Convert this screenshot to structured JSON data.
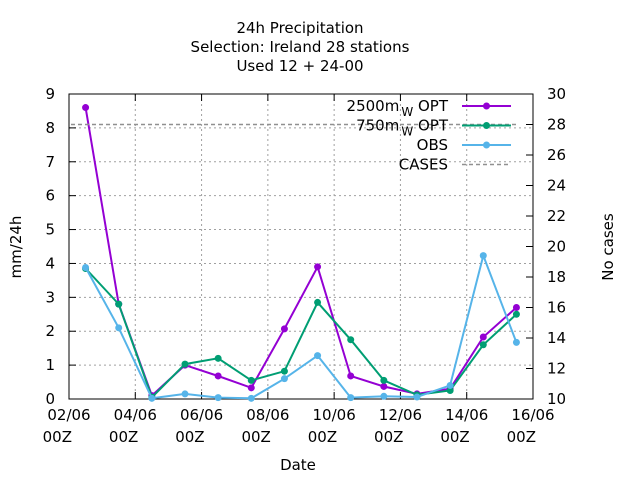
{
  "chart_data": {
    "type": "line",
    "title": [
      "24h Precipitation",
      "Selection: Ireland      28 stations",
      "Used  12 + 24-00"
    ],
    "xlabel": "Date",
    "ylabel": "mm/24h",
    "y2label": "No cases",
    "ylim": [
      0,
      9
    ],
    "y2lim": [
      10,
      30
    ],
    "xlim": [
      0,
      14
    ],
    "yticks": [
      0,
      1,
      2,
      3,
      4,
      5,
      6,
      7,
      8,
      9
    ],
    "y2ticks": [
      10,
      12,
      14,
      16,
      18,
      20,
      22,
      24,
      26,
      28,
      30
    ],
    "xticks": [
      {
        "pos": 0,
        "line1": "02/06",
        "line2": "00Z"
      },
      {
        "pos": 2,
        "line1": "04/06",
        "line2": "00Z"
      },
      {
        "pos": 4,
        "line1": "06/06",
        "line2": "00Z"
      },
      {
        "pos": 6,
        "line1": "08/06",
        "line2": "00Z"
      },
      {
        "pos": 8,
        "line1": "10/06",
        "line2": "00Z"
      },
      {
        "pos": 10,
        "line1": "12/06",
        "line2": "00Z"
      },
      {
        "pos": 12,
        "line1": "14/06",
        "line2": "00Z"
      },
      {
        "pos": 14,
        "line1": "16/06",
        "line2": "00Z"
      }
    ],
    "grid": true,
    "legend_position": "top-right",
    "x": [
      0.5,
      1.5,
      2.5,
      3.5,
      4.5,
      5.5,
      6.5,
      7.5,
      8.5,
      9.5,
      10.5,
      11.5,
      12.5,
      13.5
    ],
    "series": [
      {
        "name": "2500m",
        "name_sub": "W",
        "name_suffix": " OPT",
        "axis": "y",
        "color": "#9400d3",
        "marker": "circle",
        "values": [
          8.6,
          2.8,
          0.1,
          1.0,
          0.68,
          0.33,
          2.07,
          3.9,
          0.68,
          0.37,
          0.15,
          0.3,
          1.83,
          2.7
        ]
      },
      {
        "name": "750m",
        "name_sub": "W",
        "name_suffix": " OPT",
        "axis": "y",
        "color": "#009e73",
        "marker": "circle",
        "values": [
          3.85,
          2.8,
          0.05,
          1.03,
          1.2,
          0.55,
          0.82,
          2.85,
          1.75,
          0.55,
          0.12,
          0.25,
          1.6,
          2.5
        ]
      },
      {
        "name": "OBS",
        "axis": "y",
        "color": "#56b4e9",
        "marker": "circle",
        "values": [
          3.88,
          2.1,
          0.02,
          0.15,
          0.04,
          0.02,
          0.6,
          1.28,
          0.04,
          0.08,
          0.06,
          0.4,
          4.23,
          1.67
        ]
      },
      {
        "name": "CASES",
        "axis": "y2",
        "color": "#909090",
        "dashed": true,
        "values": [
          28,
          28,
          28,
          28,
          28,
          28,
          28,
          28,
          28,
          28,
          28,
          28,
          28,
          28
        ]
      }
    ]
  }
}
